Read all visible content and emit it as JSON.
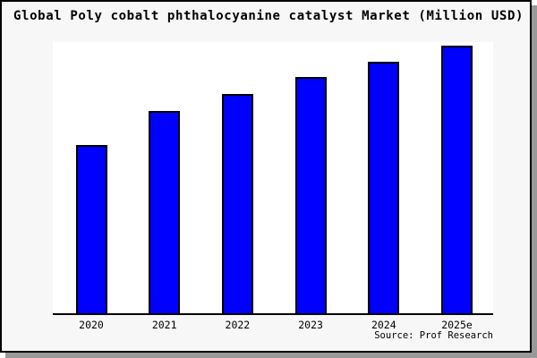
{
  "window": {
    "background_color": "#f7f7f7",
    "border_color": "#000000",
    "shadow_color": "#999999",
    "plot_background_color": "#ffffff"
  },
  "title": "Global Poly cobalt phthalocyanine catalyst Market (Million USD)",
  "source": "Source: Prof Research",
  "chart_data": {
    "type": "bar",
    "title": "Global Poly cobalt phthalocyanine catalyst Market (Million USD)",
    "categories": [
      "2020",
      "2021",
      "2022",
      "2023",
      "2024",
      "2025e"
    ],
    "values": [
      188,
      226,
      245,
      264,
      281,
      299
    ],
    "xlabel": "",
    "ylabel": "",
    "bar_color": "#0000ff",
    "bar_edge_color": "#000000",
    "axis_color": "#000000",
    "grid": false,
    "y_axis_visible": false,
    "y_tick_labels_visible": false,
    "legend": null
  }
}
